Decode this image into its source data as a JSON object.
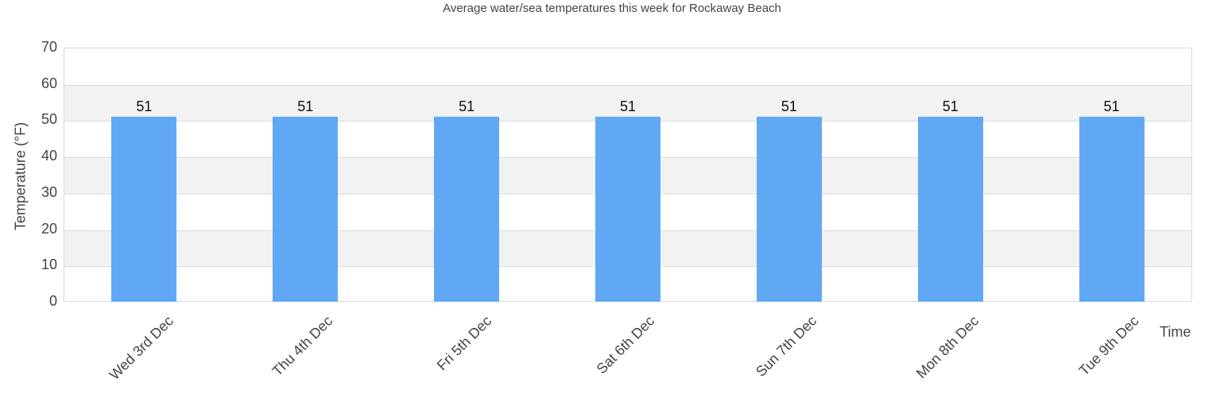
{
  "chart_data": {
    "type": "bar",
    "title": "Average water/sea temperatures this week for Rockaway Beach",
    "xlabel": "Time",
    "ylabel": "Temperature (°F)",
    "ylim": [
      0,
      70
    ],
    "yticks": [
      0,
      10,
      20,
      30,
      40,
      50,
      60,
      70
    ],
    "grid": true,
    "categories": [
      "Wed 3rd Dec",
      "Thu 4th Dec",
      "Fri 5th Dec",
      "Sat 6th Dec",
      "Sun 7th Dec",
      "Mon 8th Dec",
      "Tue 9th Dec"
    ],
    "values": [
      51,
      51,
      51,
      51,
      51,
      51,
      51
    ],
    "value_labels": [
      "51",
      "51",
      "51",
      "51",
      "51",
      "51",
      "51"
    ],
    "bar_color": "#61a8f4",
    "band_color": "#f2f2f2"
  }
}
